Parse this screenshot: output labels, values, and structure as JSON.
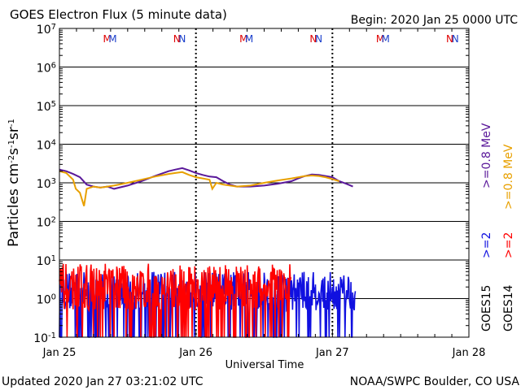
{
  "header": {
    "title": "GOES Electron Flux (5 minute data)",
    "begin": "Begin: 2020 Jan 25 0000 UTC"
  },
  "footer": {
    "updated": "Updated 2020 Jan 27 03:21:02 UTC",
    "credit": "NOAA/SWPC Boulder, CO USA"
  },
  "colors": {
    "goes15_ge2": "#1010e0",
    "goes14_ge2": "#ff0000",
    "goes15_ge08": "#5a189a",
    "goes14_ge08": "#e8a000",
    "threshold": "#000000",
    "marker_m": "#e00000",
    "marker_n": "#1a3fcc"
  },
  "chart_data": {
    "type": "line",
    "ylabel_base": "Particles cm",
    "ylabel_sup1": "-2",
    "ylabel_mid1": "s",
    "ylabel_sup2": "-1",
    "ylabel_mid2": "sr",
    "ylabel_sup3": "-1",
    "xlabel": "Universal Time",
    "yscale": "log",
    "ylim": [
      0.1,
      10000000
    ],
    "yticks": [
      {
        "base": "10",
        "exp": "-1"
      },
      {
        "base": "10",
        "exp": "0"
      },
      {
        "base": "10",
        "exp": "1"
      },
      {
        "base": "10",
        "exp": "2"
      },
      {
        "base": "10",
        "exp": "3"
      },
      {
        "base": "10",
        "exp": "4"
      },
      {
        "base": "10",
        "exp": "5"
      },
      {
        "base": "10",
        "exp": "6"
      },
      {
        "base": "10",
        "exp": "7"
      }
    ],
    "xlim_days": [
      0,
      3
    ],
    "xticks": [
      "Jan 25",
      "Jan 26",
      "Jan 27",
      "Jan 28"
    ],
    "threshold": 1000,
    "grid": true,
    "markers": [
      {
        "label": "M",
        "day": 0.35
      },
      {
        "label": "M",
        "day": 0.39
      },
      {
        "label": "N",
        "day": 0.86
      },
      {
        "label": "N",
        "day": 0.9
      },
      {
        "label": "M",
        "day": 1.35
      },
      {
        "label": "M",
        "day": 1.39
      },
      {
        "label": "N",
        "day": 1.86
      },
      {
        "label": "N",
        "day": 1.9
      },
      {
        "label": "M",
        "day": 2.35
      },
      {
        "label": "M",
        "day": 2.39
      },
      {
        "label": "N",
        "day": 2.86
      },
      {
        "label": "N",
        "day": 2.9
      }
    ],
    "legend": {
      "placement": "right",
      "ge08_goes15": ">=0.8 MeV",
      "ge08_goes14": ">=0.8 MeV",
      "ge2_goes15": ">=2",
      "ge2_goes14": ">=2",
      "sat_goes15": "GOES15",
      "sat_goes14": "GOES14"
    },
    "series": [
      {
        "name": "GOES15 >=0.8 MeV",
        "x_days": [
          0.0,
          0.05,
          0.1,
          0.15,
          0.2,
          0.25,
          0.3,
          0.35,
          0.4,
          0.5,
          0.6,
          0.7,
          0.8,
          0.85,
          0.9,
          0.95,
          1.0,
          1.05,
          1.1,
          1.15,
          1.2,
          1.25,
          1.3,
          1.4,
          1.5,
          1.6,
          1.7,
          1.75,
          1.8,
          1.85,
          1.9,
          2.0,
          2.05,
          2.1,
          2.15
        ],
        "values": [
          2200,
          2000,
          1700,
          1400,
          900,
          800,
          750,
          800,
          700,
          850,
          1100,
          1500,
          2000,
          2200,
          2400,
          2100,
          1800,
          1600,
          1450,
          1400,
          1100,
          900,
          800,
          800,
          850,
          950,
          1100,
          1300,
          1500,
          1650,
          1600,
          1400,
          1100,
          950,
          800
        ]
      },
      {
        "name": "GOES14 >=0.8 MeV",
        "x_days": [
          0.0,
          0.05,
          0.1,
          0.12,
          0.15,
          0.18,
          0.2,
          0.25,
          0.3,
          0.4,
          0.5,
          0.6,
          0.7,
          0.8,
          0.85,
          0.9,
          0.95,
          1.0,
          1.05,
          1.1,
          1.12,
          1.15,
          1.2,
          1.3,
          1.4,
          1.5,
          1.6,
          1.7,
          1.8,
          1.85,
          1.9,
          1.95,
          2.0,
          2.05
        ],
        "values": [
          2000,
          1800,
          1200,
          700,
          550,
          250,
          700,
          800,
          750,
          850,
          1000,
          1200,
          1450,
          1700,
          1800,
          1900,
          1600,
          1400,
          1300,
          1200,
          700,
          1000,
          900,
          800,
          850,
          1000,
          1150,
          1300,
          1500,
          1550,
          1500,
          1400,
          1250,
          1100
        ]
      },
      {
        "name": "GOES15 >=2",
        "pattern": "noisy",
        "x_days": [
          0.0,
          1.7,
          2.17
        ],
        "baseline_range": [
          0.5,
          5
        ],
        "dropout_floor": 0.1
      },
      {
        "name": "GOES14 >=2",
        "pattern": "noisy",
        "x_days": [
          0.0,
          1.7
        ],
        "baseline_range": [
          0.5,
          8
        ],
        "dropout_floor": 0.1
      }
    ]
  }
}
